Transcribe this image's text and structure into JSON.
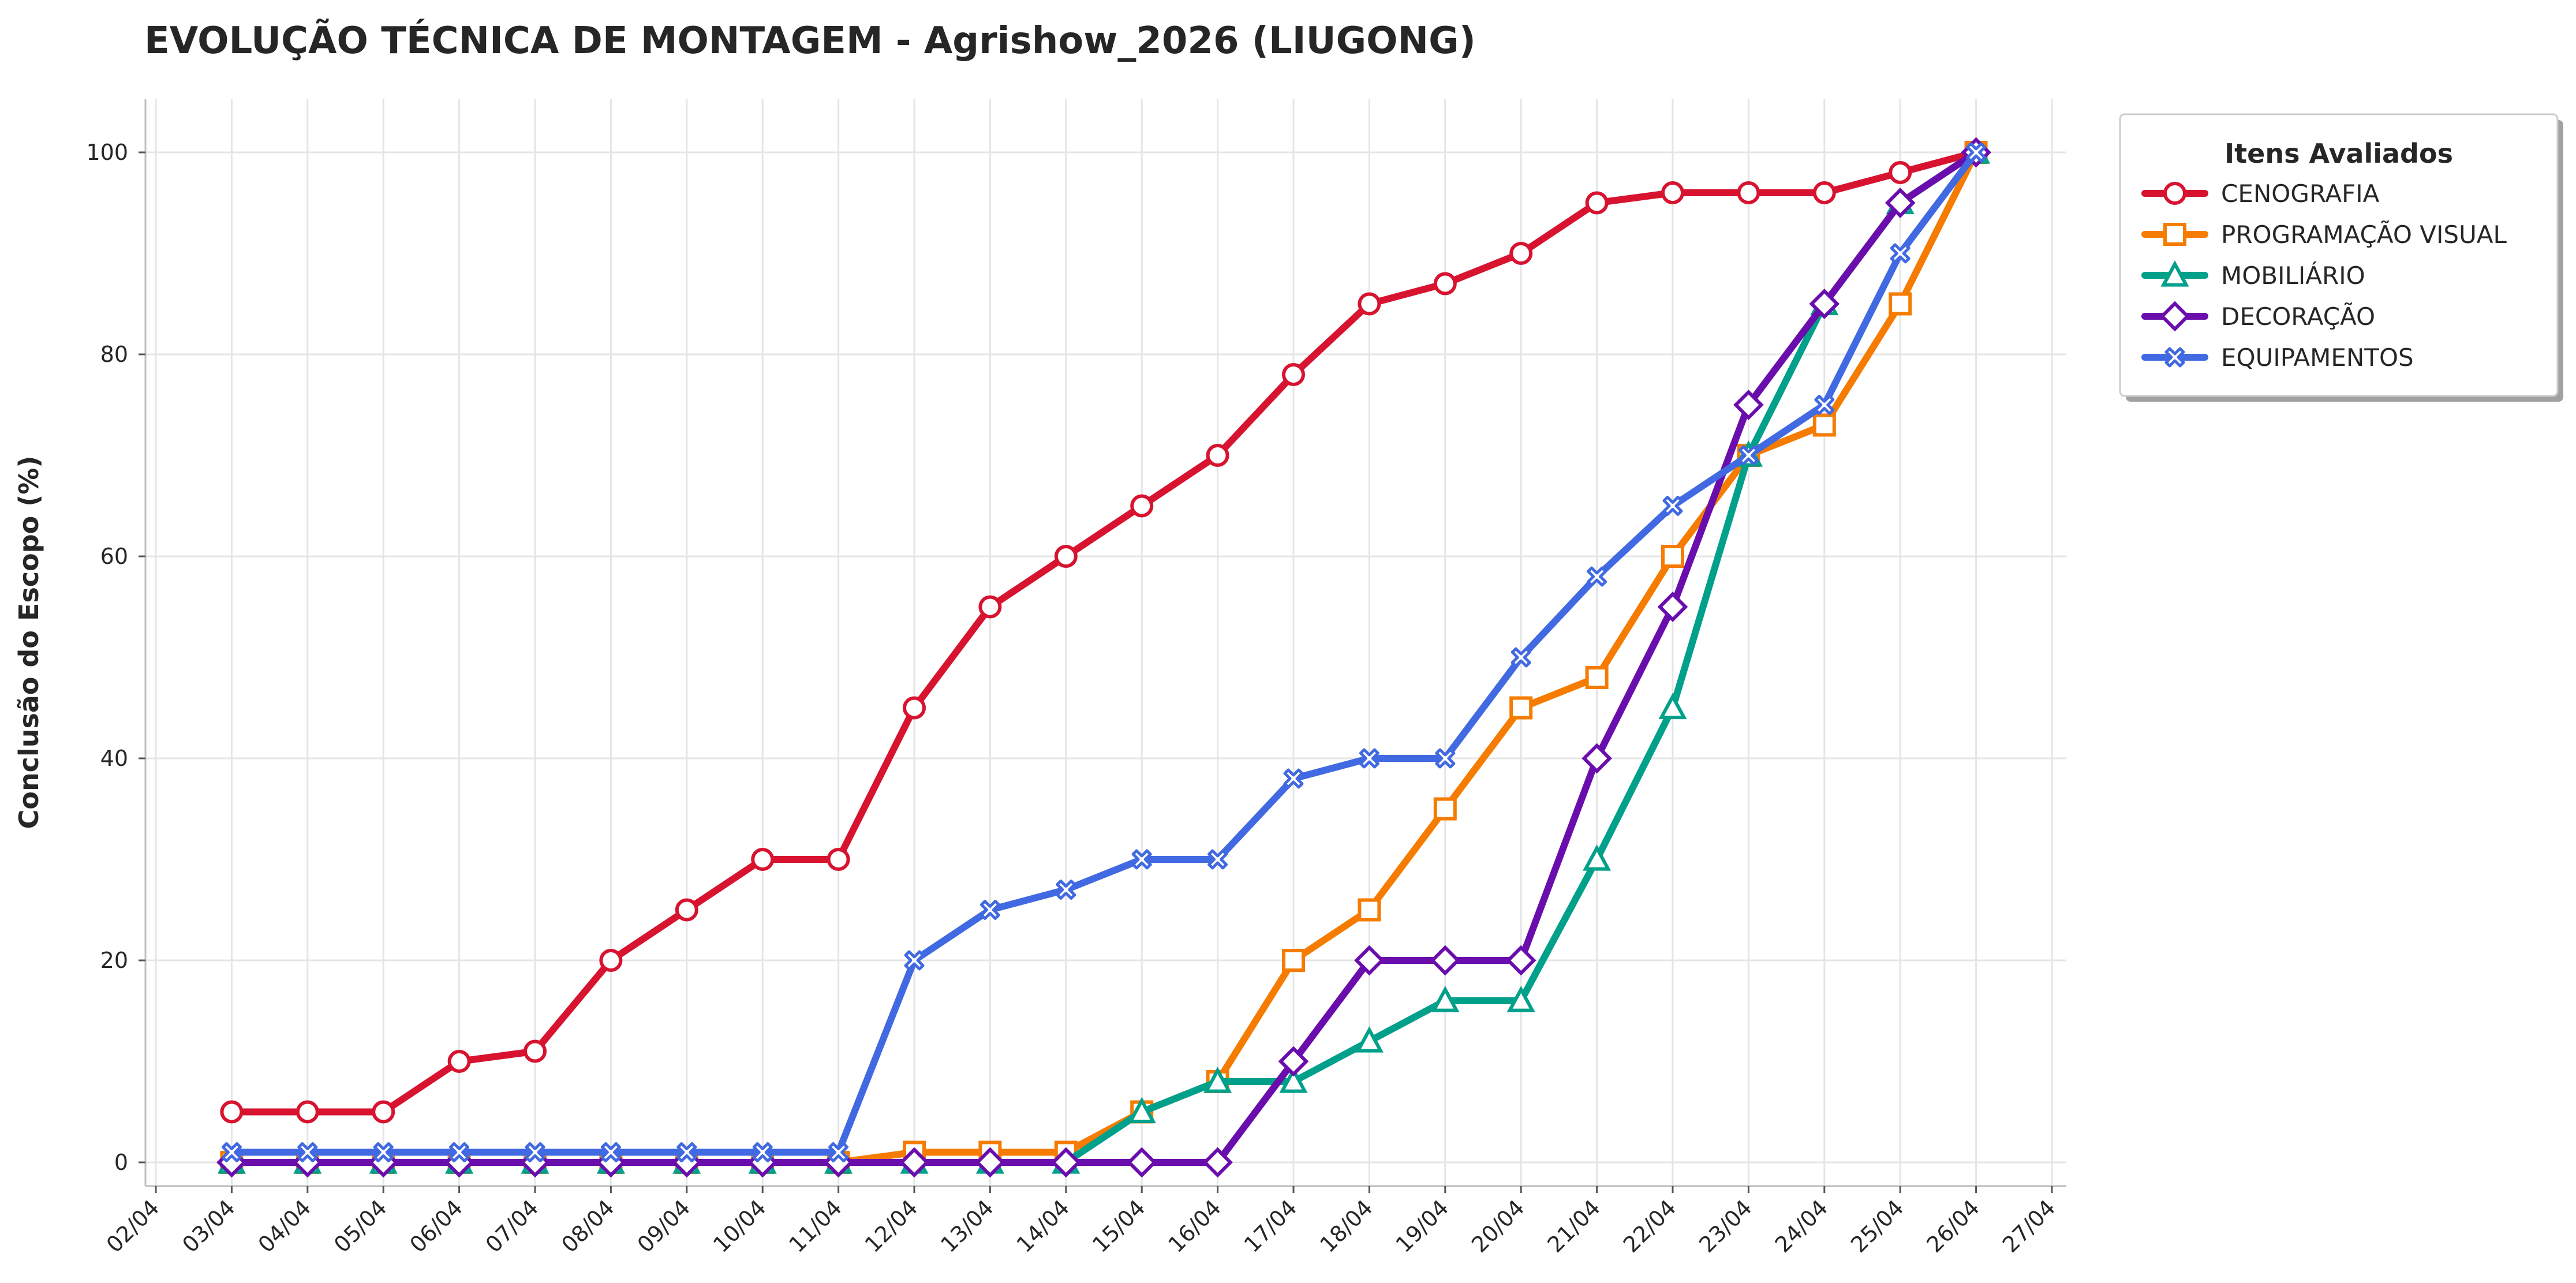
{
  "chart_data": {
    "type": "line",
    "title": "EVOLUÇÃO TÉCNICA DE MONTAGEM - Agrishow_2026 (LIUGONG)",
    "xlabel": "",
    "ylabel": "Conclusão do Escopo (%)",
    "x_ticks": [
      "02/04",
      "03/04",
      "04/04",
      "05/04",
      "06/04",
      "07/04",
      "08/04",
      "09/04",
      "10/04",
      "11/04",
      "12/04",
      "13/04",
      "14/04",
      "15/04",
      "16/04",
      "17/04",
      "18/04",
      "19/04",
      "20/04",
      "21/04",
      "22/04",
      "23/04",
      "24/04",
      "25/04",
      "26/04",
      "27/04"
    ],
    "x": [
      "03/04",
      "04/04",
      "05/04",
      "06/04",
      "07/04",
      "08/04",
      "09/04",
      "10/04",
      "11/04",
      "12/04",
      "13/04",
      "14/04",
      "15/04",
      "16/04",
      "17/04",
      "18/04",
      "19/04",
      "20/04",
      "21/04",
      "22/04",
      "23/04",
      "24/04",
      "25/04",
      "26/04"
    ],
    "ylim": [
      -2,
      105
    ],
    "y_ticks": [
      0,
      20,
      40,
      60,
      80,
      100
    ],
    "grid": true,
    "legend": {
      "title": "Itens Avaliados",
      "placement": "top-right, outside plot"
    },
    "series": [
      {
        "name": "CENOGRAFIA",
        "color": "#d7132f",
        "marker": "circle",
        "values": [
          5,
          5,
          5,
          10,
          11,
          20,
          25,
          30,
          30,
          45,
          55,
          60,
          65,
          70,
          78,
          85,
          87,
          90,
          95,
          96,
          96,
          96,
          98,
          100
        ]
      },
      {
        "name": "PROGRAMAÇÃO VISUAL",
        "color": "#f57c00",
        "marker": "square",
        "values": [
          0,
          0,
          0,
          0,
          0,
          0,
          0,
          0,
          0,
          1,
          1,
          1,
          5,
          8,
          20,
          25,
          35,
          45,
          48,
          60,
          70,
          73,
          85,
          100
        ]
      },
      {
        "name": "MOBILIÁRIO",
        "color": "#00a08a",
        "marker": "triangle",
        "values": [
          0,
          0,
          0,
          0,
          0,
          0,
          0,
          0,
          0,
          0,
          0,
          0,
          5,
          8,
          8,
          12,
          16,
          16,
          30,
          45,
          70,
          85,
          95,
          100
        ]
      },
      {
        "name": "DECORAÇÃO",
        "color": "#6a0dad",
        "marker": "diamond",
        "values": [
          0,
          0,
          0,
          0,
          0,
          0,
          0,
          0,
          0,
          0,
          0,
          0,
          0,
          0,
          10,
          20,
          20,
          20,
          40,
          55,
          75,
          85,
          95,
          100
        ]
      },
      {
        "name": "EQUIPAMENTOS",
        "color": "#4169e1",
        "marker": "x-filled",
        "values": [
          1,
          1,
          1,
          1,
          1,
          1,
          1,
          1,
          1,
          20,
          25,
          27,
          30,
          30,
          38,
          40,
          40,
          50,
          58,
          65,
          70,
          75,
          90,
          100
        ]
      }
    ]
  }
}
